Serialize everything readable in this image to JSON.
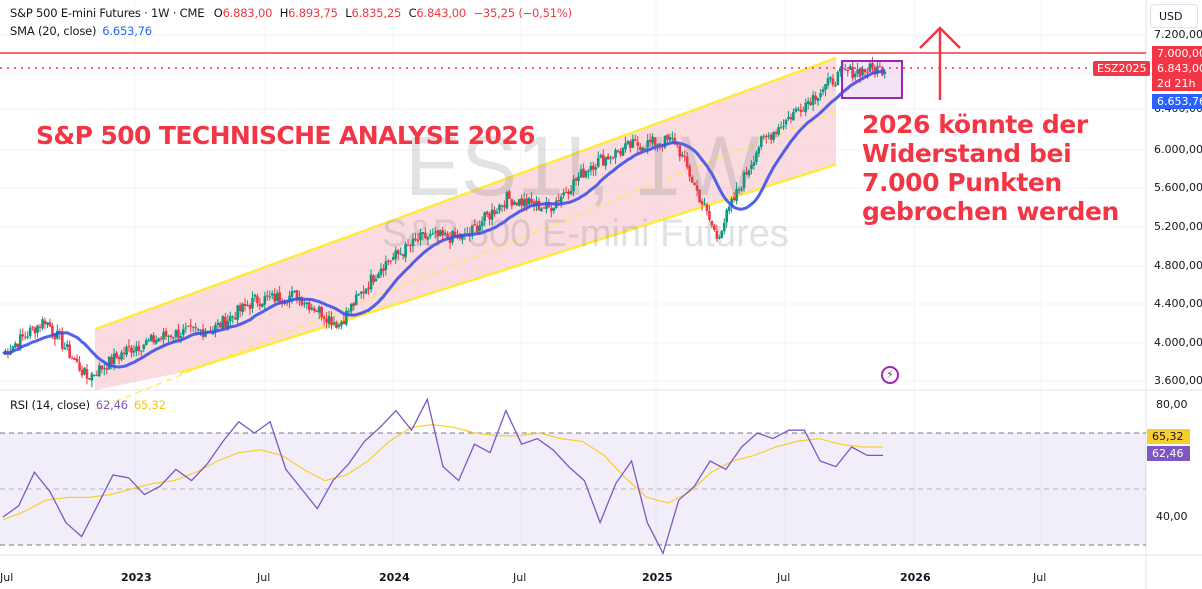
{
  "header": {
    "symbol_name": "S&P 500 E-mini Futures · 1W · CME",
    "ohlc": {
      "open_label": "O",
      "open": "6.883,00",
      "high_label": "H",
      "high": "6.893,75",
      "low_label": "L",
      "low": "6.835,25",
      "close_label": "C",
      "close": "6.843,00",
      "change": "−35,25 (−0,51%)"
    },
    "sma_label": "SMA (20, close)",
    "sma_value": "6.653,76"
  },
  "rsi_legend": {
    "label": "RSI (14, close)",
    "rsi_value": "62,46",
    "ma_value": "65,32"
  },
  "currency_button": "USD",
  "watermark": {
    "line1": "ES1!, 1W",
    "line2": "S&P 500 E-mini Futures"
  },
  "annotations": {
    "title": "S&P 500 TECHNISCHE ANALYSE 2026",
    "note": "2026 könnte der\nWiderstand bei\n7.000 Punkten\ngebrochen werden",
    "symbol_tag": "ESZ2025",
    "icon": "lightning-icon"
  },
  "price_axis": {
    "ticks": [
      "7.200,00",
      "6.400,00",
      "6.000,00",
      "5.600,00",
      "5.200,00",
      "4.800,00",
      "4.400,00",
      "4.000,00",
      "3.600,00"
    ],
    "tags": [
      {
        "value": "7.000,00",
        "color": "#f23645"
      },
      {
        "value": "6.843,00",
        "sub": "2d 21h",
        "color": "#f23645"
      },
      {
        "value": "6.653,76",
        "color": "#2962ff"
      }
    ]
  },
  "rsi_axis": {
    "ticks": [
      "80,00",
      "40,00"
    ],
    "tags": [
      {
        "value": "65,32",
        "color": "#f7cf2c",
        "text": "#131722"
      },
      {
        "value": "62,46",
        "color": "#7e57c2",
        "text": "#ffffff"
      }
    ]
  },
  "time_axis": [
    "Jul",
    "2023",
    "Jul",
    "2024",
    "Jul",
    "2025",
    "Jul",
    "2026",
    "Jul"
  ],
  "colors": {
    "up": "#089981",
    "down": "#f23645",
    "sma": "#3f51e8",
    "channel_line": "#ffeb3b",
    "channel_fill": "#f7c5cc",
    "resistance": "#f23645",
    "box": "#9c27b0",
    "rsi": "#7e57c2",
    "rsi_ma": "#f7cf2c"
  },
  "chart_data": [
    {
      "type": "candlestick",
      "title": "S&P 500 E-mini Futures (ES1!) · 1W · CME",
      "xlabel": "",
      "ylabel": "USD",
      "ylim": [
        3500,
        7300
      ],
      "x_ticks": [
        "Jul 2022",
        "2023",
        "Jul 2023",
        "2024",
        "Jul 2024",
        "2025",
        "Jul 2025",
        "2026",
        "Jul 2026"
      ],
      "weekly_close_approx": {
        "dates": [
          "2022-06",
          "2022-08",
          "2022-10",
          "2022-12",
          "2023-02",
          "2023-04",
          "2023-06",
          "2023-08",
          "2023-10",
          "2023-12",
          "2024-02",
          "2024-04",
          "2024-06",
          "2024-08",
          "2024-10",
          "2024-12",
          "2025-02",
          "2025-04",
          "2025-06",
          "2025-08",
          "2025-10",
          "2025-11"
        ],
        "values": [
          3900,
          4250,
          3650,
          3950,
          4100,
          4150,
          4450,
          4500,
          4200,
          4800,
          5100,
          5100,
          5500,
          5400,
          5850,
          6050,
          6100,
          5100,
          6050,
          6450,
          6800,
          6843
        ]
      },
      "last": {
        "open": 6883.0,
        "high": 6893.75,
        "low": 6835.25,
        "close": 6843.0,
        "change": -35.25,
        "change_pct": -0.51
      },
      "overlays": [
        {
          "name": "SMA (20, close)",
          "last": 6653.76,
          "color": "#3f51e8"
        },
        {
          "name": "Resistance",
          "value": 7000,
          "color": "#f23645"
        },
        {
          "name": "Ascending channel",
          "upper_from": [
            "2022-12",
            4150
          ],
          "upper_to": [
            "2025-10",
            6950
          ],
          "lower_from": [
            "2023-08",
            3700
          ],
          "lower_to": [
            "2025-10",
            5850
          ]
        },
        {
          "name": "Consolidation box",
          "from": "2025-10",
          "to": "2025-12",
          "low": 6600,
          "high": 6950
        }
      ],
      "annotations": [
        "S&P 500 TECHNISCHE ANALYSE 2026",
        "2026 könnte der Widerstand bei 7.000 Punkten gebrochen werden"
      ]
    },
    {
      "type": "line",
      "title": "RSI (14, close)",
      "ylim": [
        25,
        85
      ],
      "levels": [
        30,
        50,
        70
      ],
      "series": [
        {
          "name": "RSI",
          "last": 62.46,
          "values": [
            40,
            44,
            56,
            49,
            38,
            33,
            44,
            55,
            54,
            48,
            51,
            57,
            53,
            59,
            67,
            74,
            70,
            74,
            57,
            50,
            43,
            53,
            59,
            67,
            72,
            78,
            71,
            82,
            58,
            53,
            66,
            63,
            78,
            66,
            68,
            64,
            58,
            53,
            38,
            52,
            60,
            38,
            27,
            46,
            51,
            60,
            57,
            65,
            70,
            68,
            71,
            71,
            60,
            58,
            65,
            62,
            62
          ]
        },
        {
          "name": "RSI-based MA",
          "last": 65.32,
          "values": [
            39,
            42,
            46,
            47,
            47,
            48,
            50,
            52,
            53,
            56,
            60,
            63,
            64,
            62,
            57,
            53,
            55,
            60,
            67,
            72,
            73,
            72,
            70,
            69,
            69,
            70,
            68,
            67,
            62,
            54,
            47,
            45,
            49,
            56,
            60,
            62,
            65,
            67,
            68,
            66,
            65,
            65
          ]
        }
      ]
    }
  ]
}
